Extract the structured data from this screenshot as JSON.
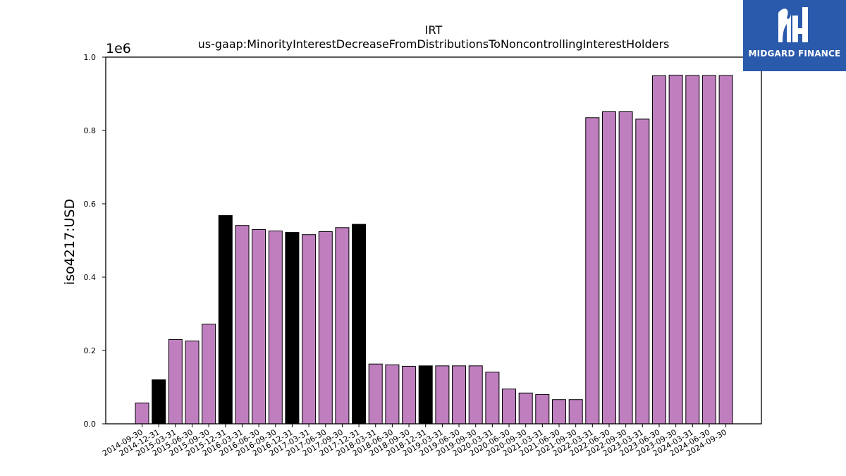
{
  "chart_data": {
    "type": "bar",
    "title": "IRT",
    "subtitle": "us-gaap:MinorityInterestDecreaseFromDistributionsToNoncontrollingInterestHolders",
    "ylabel": "iso4217:USD",
    "xlabel": "",
    "y_scale_label": "1e6",
    "ylim": [
      0,
      1000000
    ],
    "yticks": [
      "0.0",
      "0.2",
      "0.4",
      "0.6",
      "0.8",
      "1.0"
    ],
    "grid": false,
    "colors": {
      "bar": "#bf7fbf",
      "highlight": "#000000",
      "edge": "#000000"
    },
    "categories": [
      "2014-09-30",
      "2014-12-31",
      "2015-03-31",
      "2015-06-30",
      "2015-09-30",
      "2015-12-31",
      "2016-03-31",
      "2016-06-30",
      "2016-09-30",
      "2016-12-31",
      "2017-03-31",
      "2017-06-30",
      "2017-09-30",
      "2017-12-31",
      "2018-03-31",
      "2018-06-30",
      "2018-09-30",
      "2018-12-31",
      "2019-03-31",
      "2019-06-30",
      "2019-09-30",
      "2020-03-31",
      "2020-06-30",
      "2020-09-30",
      "2021-03-31",
      "2021-06-30",
      "2021-09-30",
      "2022-03-31",
      "2022-06-30",
      "2022-09-30",
      "2023-03-31",
      "2023-06-30",
      "2023-09-30",
      "2024-03-31",
      "2024-06-30",
      "2024-09-30"
    ],
    "values": [
      57000,
      120000,
      230000,
      226000,
      272000,
      568000,
      541000,
      530000,
      526000,
      522000,
      516000,
      524000,
      535000,
      544000,
      163000,
      161000,
      157000,
      158000,
      158000,
      158000,
      158000,
      141000,
      95000,
      84000,
      80000,
      66000,
      66000,
      835000,
      851000,
      851000,
      831000,
      949000,
      951000,
      950000,
      950000,
      950000
    ],
    "highlighted": [
      false,
      true,
      false,
      false,
      false,
      true,
      false,
      false,
      false,
      true,
      false,
      false,
      false,
      true,
      false,
      false,
      false,
      true,
      false,
      false,
      false,
      false,
      false,
      false,
      false,
      false,
      false,
      false,
      false,
      false,
      false,
      false,
      false,
      false,
      false,
      false
    ]
  },
  "logo": {
    "text": "MIDGARD FINANCE",
    "icon": "midgard-logo-icon",
    "color": "#2a5aab"
  }
}
